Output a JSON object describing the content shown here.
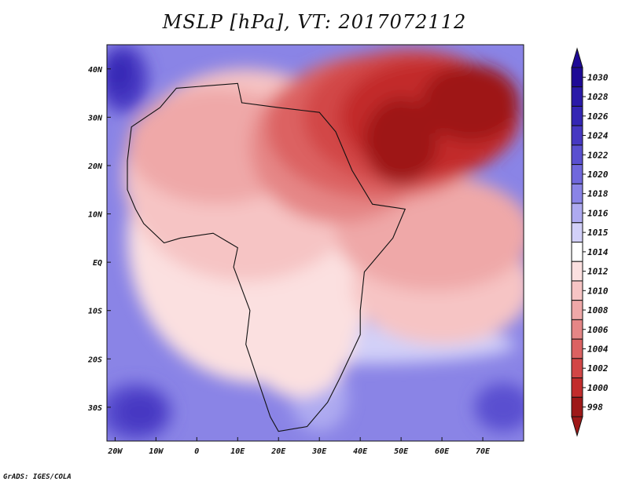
{
  "title": "MSLP [hPa], VT: 2017072112",
  "credit": "GrADS: IGES/COLA",
  "axes": {
    "lon_range": [
      -22,
      80
    ],
    "lat_range": [
      -37,
      45
    ],
    "x_ticks": [
      {
        "value": -20,
        "label": "20W"
      },
      {
        "value": -10,
        "label": "10W"
      },
      {
        "value": 0,
        "label": "0"
      },
      {
        "value": 10,
        "label": "10E"
      },
      {
        "value": 20,
        "label": "20E"
      },
      {
        "value": 30,
        "label": "30E"
      },
      {
        "value": 40,
        "label": "40E"
      },
      {
        "value": 50,
        "label": "50E"
      },
      {
        "value": 60,
        "label": "60E"
      },
      {
        "value": 70,
        "label": "70E"
      }
    ],
    "y_ticks": [
      {
        "value": 40,
        "label": "40N"
      },
      {
        "value": 30,
        "label": "30N"
      },
      {
        "value": 20,
        "label": "20N"
      },
      {
        "value": 10,
        "label": "10N"
      },
      {
        "value": 0,
        "label": "EQ"
      },
      {
        "value": -10,
        "label": "10S"
      },
      {
        "value": -20,
        "label": "20S"
      },
      {
        "value": -30,
        "label": "30S"
      }
    ]
  },
  "colorbar": {
    "levels": [
      {
        "label": "1030",
        "color": "#1e0a96"
      },
      {
        "label": "1028",
        "color": "#2a1aa8"
      },
      {
        "label": "1026",
        "color": "#3426b4"
      },
      {
        "label": "1024",
        "color": "#4638c2"
      },
      {
        "label": "1022",
        "color": "#5a50d0"
      },
      {
        "label": "1020",
        "color": "#7068dc"
      },
      {
        "label": "1018",
        "color": "#8a84e6"
      },
      {
        "label": "1016",
        "color": "#aeaaf0"
      },
      {
        "label": "1015",
        "color": "#d2d0f8"
      },
      {
        "label": "1014",
        "color": "#ffffff"
      },
      {
        "label": "1012",
        "color": "#fbe0e0"
      },
      {
        "label": "1010",
        "color": "#f6c4c4"
      },
      {
        "label": "1008",
        "color": "#efa8a8"
      },
      {
        "label": "1006",
        "color": "#e58686"
      },
      {
        "label": "1004",
        "color": "#dc6262"
      },
      {
        "label": "1002",
        "color": "#d24646"
      },
      {
        "label": "1000",
        "color": "#c22c2c"
      },
      {
        "label": "998",
        "color": "#9e1818"
      }
    ],
    "top_arrow_color": "#1e0a96",
    "bottom_arrow_color": "#9e1818"
  },
  "pressure_field": {
    "background": "#8a84e6",
    "regions": [
      {
        "level": "1024",
        "color": "#4638c2",
        "lon": -18,
        "lat": 38,
        "rlon": 6,
        "rlat": 7
      },
      {
        "level": "1026",
        "color": "#3426b4",
        "lon": -19,
        "lat": 39,
        "rlon": 3,
        "rlat": 4
      },
      {
        "level": "1022",
        "color": "#5a50d0",
        "lon": -15,
        "lat": -31,
        "rlon": 9,
        "rlat": 6
      },
      {
        "level": "1024",
        "color": "#4638c2",
        "lon": -14,
        "lat": -31,
        "rlon": 6,
        "rlat": 4
      },
      {
        "level": "1022",
        "color": "#5a50d0",
        "lon": 75,
        "lat": -30,
        "rlon": 7,
        "rlat": 5
      },
      {
        "level": "1016",
        "color": "#aeaaf0",
        "lon": 30,
        "lat": -28,
        "rlon": 7,
        "rlat": 7
      },
      {
        "level": "1015",
        "color": "#d2d0f8",
        "lon": 40,
        "lat": -17,
        "rlon": 38,
        "rlat": 4
      },
      {
        "level": "1012",
        "color": "#fbe0e0",
        "lon": 15,
        "lat": 5,
        "rlon": 32,
        "rlat": 30
      },
      {
        "level": "1012",
        "color": "#fbe0e0",
        "lon": 25,
        "lat": -14,
        "rlon": 14,
        "rlat": 14
      },
      {
        "level": "1010",
        "color": "#f6c4c4",
        "lon": 12,
        "lat": 18,
        "rlon": 30,
        "rlat": 22
      },
      {
        "level": "1010",
        "color": "#f6c4c4",
        "lon": 60,
        "lat": -5,
        "rlon": 22,
        "rlat": 12
      },
      {
        "level": "1008",
        "color": "#efa8a8",
        "lon": 5,
        "lat": 24,
        "rlon": 22,
        "rlat": 12
      },
      {
        "level": "1008",
        "color": "#efa8a8",
        "lon": 58,
        "lat": 6,
        "rlon": 24,
        "rlat": 12
      },
      {
        "level": "1006",
        "color": "#e58686",
        "lon": 35,
        "lat": 24,
        "rlon": 22,
        "rlat": 16
      },
      {
        "level": "1004",
        "color": "#dc6262",
        "lon": 45,
        "lat": 28,
        "rlon": 28,
        "rlat": 15
      },
      {
        "level": "1002",
        "color": "#d24646",
        "lon": 52,
        "lat": 30,
        "rlon": 26,
        "rlat": 14
      },
      {
        "level": "1000",
        "color": "#c22c2c",
        "lon": 57,
        "lat": 30,
        "rlon": 22,
        "rlat": 12
      },
      {
        "level": "998",
        "color": "#9e1818",
        "lon": 50,
        "lat": 25,
        "rlon": 9,
        "rlat": 9
      },
      {
        "level": "998",
        "color": "#9e1818",
        "lon": 67,
        "lat": 33,
        "rlon": 12,
        "rlat": 8
      }
    ],
    "africa_outline": [
      [
        -17,
        21
      ],
      [
        -16,
        28
      ],
      [
        -9,
        32
      ],
      [
        -5,
        36
      ],
      [
        10,
        37
      ],
      [
        11,
        33
      ],
      [
        20,
        32
      ],
      [
        30,
        31
      ],
      [
        32,
        29
      ],
      [
        34,
        27
      ],
      [
        38,
        19
      ],
      [
        43,
        12
      ],
      [
        51,
        11
      ],
      [
        48,
        5
      ],
      [
        41,
        -2
      ],
      [
        40,
        -10
      ],
      [
        40,
        -15
      ],
      [
        35,
        -24
      ],
      [
        32,
        -29
      ],
      [
        27,
        -34
      ],
      [
        20,
        -35
      ],
      [
        18,
        -32
      ],
      [
        12,
        -17
      ],
      [
        13,
        -10
      ],
      [
        9,
        -1
      ],
      [
        10,
        3
      ],
      [
        8,
        4
      ],
      [
        4,
        6
      ],
      [
        -4,
        5
      ],
      [
        -8,
        4
      ],
      [
        -13,
        8
      ],
      [
        -15,
        11
      ],
      [
        -17,
        15
      ]
    ]
  }
}
